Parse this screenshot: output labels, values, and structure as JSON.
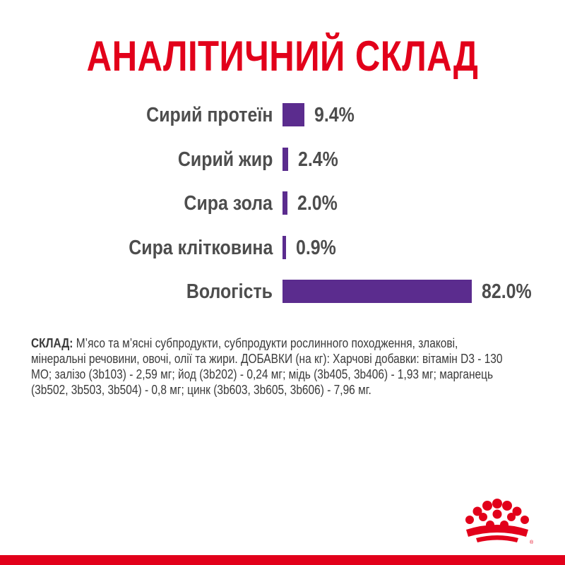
{
  "title": "АНАЛІТИЧНИЙ СКЛАД",
  "colors": {
    "title": "#e2001a",
    "bar": "#5b2c8e",
    "text": "#4d4d4d",
    "strip": "#e2001a",
    "logo": "#e2001a"
  },
  "chart_data": {
    "type": "bar",
    "orientation": "horizontal",
    "title": "АНАЛІТИЧНИЙ СКЛАД",
    "categories": [
      "Сирий протеїн",
      "Сирий жир",
      "Сира зола",
      "Сира клітковина",
      "Вологість"
    ],
    "values": [
      9.4,
      2.4,
      2.0,
      0.9,
      82.0
    ],
    "value_labels": [
      "9.4%",
      "2.4%",
      "2.0%",
      "0.9%",
      "82.0%"
    ],
    "unit": "%",
    "xlim": [
      0,
      82.0
    ],
    "grid": false,
    "legend": "none"
  },
  "composition": {
    "label": "СКЛАД:",
    "text": " М’ясо та м’ясні субпродукти, субпродукти рослинного походження, злакові, мінеральні речовини, овочі, олії та жири. ДОБАВКИ (на кг): Харчові добавки: вітамін D3 - 130 МО; залізо (3b103) - 2,59 мг; йод (3b202) - 0,24 мг; мідь (3b405, 3b406) - 1,93 мг; марганець (3b502, 3b503, 3b504) - 0,8 мг; цинк (3b603, 3b605, 3b606) - 7,96 мг."
  },
  "logo": {
    "icon": "royal-canin-crown-icon"
  }
}
